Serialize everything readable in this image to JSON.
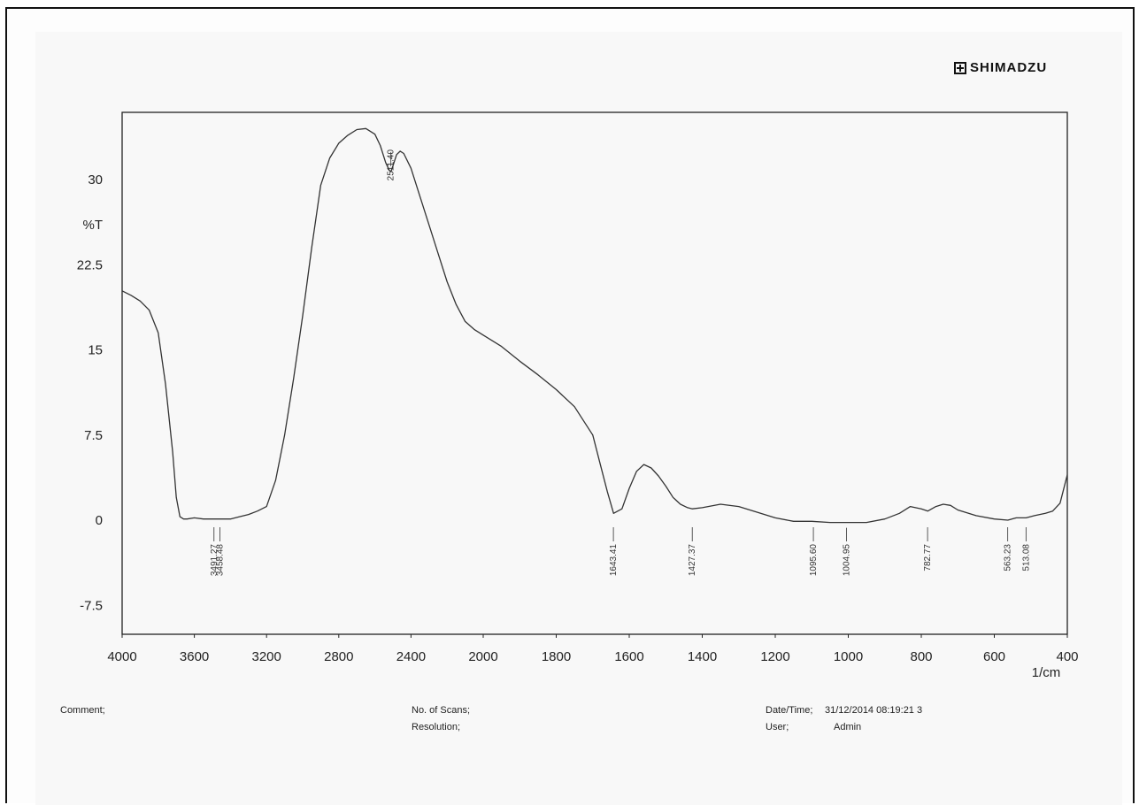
{
  "brand": {
    "name": "SHIMADZU",
    "icon": "shimadzu-logo-icon"
  },
  "chart_data": {
    "type": "line",
    "title": "",
    "xlabel": "1/cm",
    "ylabel": "%T",
    "xlim": [
      4000,
      400
    ],
    "ylim": [
      -10,
      35
    ],
    "x_ticks": [
      4000,
      3600,
      3200,
      2800,
      2400,
      2000,
      1800,
      1600,
      1400,
      1200,
      1000,
      800,
      600,
      400
    ],
    "x_tick_labels": [
      "4000",
      "3600",
      "3200",
      "2800",
      "2400",
      "2000",
      "1800",
      "1600",
      "1400",
      "1200",
      "1000",
      "800",
      "600",
      "400"
    ],
    "y_ticks": [
      30,
      22.5,
      15,
      7.5,
      0,
      -7.5
    ],
    "y_tick_labels": [
      "30",
      "22.5",
      "15",
      "7.5",
      "0",
      "-7.5"
    ],
    "grid": false,
    "series": [
      {
        "x": [
          4000,
          3950,
          3900,
          3850,
          3800,
          3760,
          3720,
          3700,
          3680,
          3660,
          3640,
          3600,
          3550,
          3500,
          3450,
          3400,
          3350,
          3300,
          3250,
          3200,
          3150,
          3100,
          3050,
          3000,
          2950,
          2900,
          2850,
          2800,
          2750,
          2700,
          2650,
          2600,
          2570,
          2540,
          2520,
          2511,
          2500,
          2480,
          2460,
          2440,
          2400,
          2350,
          2300,
          2250,
          2200,
          2150,
          2100,
          2050,
          2000,
          1950,
          1900,
          1850,
          1800,
          1750,
          1700,
          1680,
          1660,
          1643,
          1620,
          1600,
          1580,
          1560,
          1540,
          1520,
          1500,
          1480,
          1460,
          1440,
          1427,
          1400,
          1350,
          1300,
          1250,
          1200,
          1150,
          1100,
          1050,
          1000,
          950,
          900,
          860,
          830,
          800,
          782,
          760,
          740,
          720,
          700,
          650,
          600,
          563,
          540,
          513,
          490,
          460,
          440,
          420,
          400
        ],
        "y": [
          20.2,
          19.8,
          19.3,
          18.5,
          16.5,
          12,
          6,
          2,
          0.3,
          0.1,
          0.1,
          0.2,
          0.1,
          0.1,
          0.1,
          0.1,
          0.3,
          0.5,
          0.8,
          1.2,
          3.5,
          7.5,
          12.5,
          18,
          24,
          29.5,
          31.9,
          33.2,
          33.9,
          34.4,
          34.5,
          34,
          33,
          31.5,
          30.8,
          30.7,
          31.2,
          32.2,
          32.5,
          32.3,
          31,
          28.5,
          26,
          23.5,
          21,
          19,
          17.5,
          16.8,
          16.3,
          15.3,
          14,
          12.8,
          11.5,
          10,
          7.5,
          5,
          2.5,
          0.6,
          1,
          2.8,
          4.3,
          4.9,
          4.6,
          3.9,
          3,
          2,
          1.4,
          1.1,
          1,
          1.1,
          1.4,
          1.2,
          0.7,
          0.2,
          -0.1,
          -0.1,
          -0.2,
          -0.2,
          -0.2,
          0.1,
          0.6,
          1.2,
          1,
          0.8,
          1.2,
          1.4,
          1.3,
          0.9,
          0.4,
          0.1,
          0,
          0.2,
          0.2,
          0.4,
          0.6,
          0.8,
          1.5,
          4
        ]
      }
    ],
    "peaks": [
      {
        "x": 3491.27,
        "label": "3491.27"
      },
      {
        "x": 3458.48,
        "label": "3458.48"
      },
      {
        "x": 2511.4,
        "label": "2511.40"
      },
      {
        "x": 1643.41,
        "label": "1643.41"
      },
      {
        "x": 1427.37,
        "label": "1427.37"
      },
      {
        "x": 1095.6,
        "label": "1095.60"
      },
      {
        "x": 1004.95,
        "label": "1004.95"
      },
      {
        "x": 782.77,
        "label": "782.77"
      },
      {
        "x": 563.23,
        "label": "563.23"
      },
      {
        "x": 513.08,
        "label": "513.08"
      }
    ]
  },
  "footer": {
    "comment_label": "Comment;",
    "scans_label": "No. of Scans;",
    "resolution_label": "Resolution;",
    "datetime_label": "Date/Time;",
    "datetime_value": "31/12/2014 08:19:21 3",
    "user_label": "User;",
    "user_value": "Admin"
  }
}
